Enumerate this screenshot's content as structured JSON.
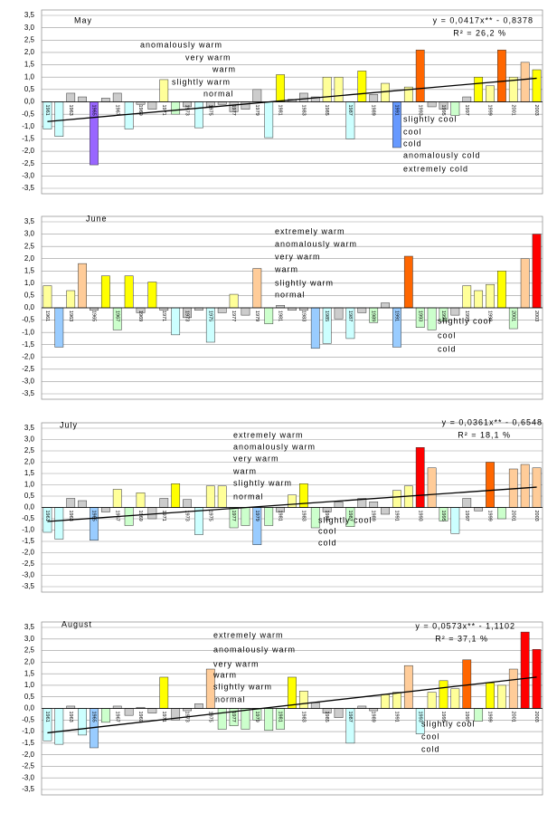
{
  "chart_data": [
    {
      "type": "bar",
      "title": "May",
      "categories": [
        "1961",
        null,
        "1963",
        null,
        "1965",
        null,
        "1967",
        null,
        "1969",
        null,
        "1971",
        null,
        "1973",
        null,
        "1975",
        null,
        "1977",
        null,
        "1979",
        null,
        "1981",
        null,
        "1983",
        null,
        "1985",
        null,
        "1987",
        null,
        "1989",
        null,
        "1991",
        null,
        "1993",
        null,
        "1995",
        null,
        "1997",
        null,
        "1999",
        null,
        "2001",
        null,
        "2003"
      ],
      "values": [
        -1.1,
        -1.4,
        0.35,
        0.2,
        -2.55,
        0.15,
        0.35,
        -1.1,
        -0.1,
        -0.3,
        0.9,
        -0.5,
        -0.2,
        -1.05,
        -0.2,
        -0.1,
        -0.4,
        -0.3,
        0.5,
        -1.45,
        1.1,
        0.1,
        0.35,
        0.2,
        1.0,
        1.0,
        -1.5,
        1.25,
        0.3,
        0.75,
        -1.85,
        0.6,
        2.1,
        -0.2,
        -0.3,
        -0.55,
        0.2,
        1.0,
        0.65,
        2.1,
        1.0,
        1.6,
        1.3
      ],
      "colors": [
        "#cff",
        "#cff",
        "#ccc",
        "#ccc",
        "#96f",
        "#ccc",
        "#ccc",
        "#cff",
        "#ccc",
        "#ccc",
        "#ff9",
        "#cfc",
        "#ccc",
        "#cff",
        "#ccc",
        "#ccc",
        "#ccc",
        "#ccc",
        "#ccc",
        "#cff",
        "#ff0",
        "#ccc",
        "#ccc",
        "#ccc",
        "#ff9",
        "#ff9",
        "#cff",
        "#ff0",
        "#ccc",
        "#ff9",
        "#69f",
        "#ff9",
        "#f60",
        "#ccc",
        "#ccc",
        "#cfc",
        "#ccc",
        "#ff0",
        "#ff9",
        "#f60",
        "#ff9",
        "#fc9",
        "#ff0"
      ],
      "class_labels": [
        "anomalously warm",
        "very warm",
        "warm",
        "slightly warm",
        "normal",
        "slightly cool",
        "cool",
        "cold",
        "anomalously cold",
        "extremely cold"
      ],
      "trend": {
        "slope": 0.0417,
        "intercept": -0.8378,
        "equation": "y = 0,0417x** - 0,8378",
        "r_squared": "R² = 26,2 %"
      },
      "ylim": [
        -3.5,
        3.5
      ],
      "yticks": [
        {
          "value": 3.5,
          "label": "3,5"
        },
        {
          "value": 3.0,
          "label": "3,0"
        },
        {
          "value": 2.5,
          "label": "2,5"
        },
        {
          "value": 2.0,
          "label": "2,0"
        },
        {
          "value": 1.5,
          "label": "1,5"
        },
        {
          "value": 1.0,
          "label": "1,0"
        },
        {
          "value": 0.5,
          "label": "0,5"
        },
        {
          "value": 0,
          "label": "0,0"
        },
        {
          "value": -0.5,
          "label": "-0,5"
        },
        {
          "value": -1.0,
          "label": "-1,0"
        },
        {
          "value": -1.5,
          "label": "-1,5"
        },
        {
          "value": -2.0,
          "label": "-2,0"
        },
        {
          "value": -2.5,
          "label": "-2,5"
        },
        {
          "value": -3.0,
          "label": "-3,0"
        },
        {
          "value": -3.5,
          "label": "-3,5"
        }
      ],
      "grid": true
    },
    {
      "type": "bar",
      "title": "June",
      "categories": [
        "1961",
        null,
        "1963",
        null,
        "1965",
        null,
        "1967",
        null,
        "1969",
        null,
        "1971",
        null,
        "1973",
        null,
        "1975",
        null,
        "1977",
        null,
        "1979",
        null,
        "1981",
        null,
        "1983",
        null,
        "1985",
        null,
        "1987",
        null,
        "1989",
        null,
        "1991",
        null,
        "1993",
        null,
        "1995",
        null,
        "1997",
        null,
        "1999",
        null,
        "2001",
        null,
        "2003"
      ],
      "values": [
        0.9,
        -1.6,
        0.7,
        1.8,
        -0.1,
        1.3,
        -0.9,
        1.3,
        -0.2,
        1.05,
        -0.1,
        -1.1,
        -0.4,
        -0.1,
        -1.4,
        -0.2,
        0.55,
        -0.3,
        1.6,
        -0.65,
        0.1,
        -0.1,
        -0.1,
        -1.65,
        -1.45,
        -0.45,
        -1.25,
        -0.2,
        -0.6,
        0.2,
        -1.6,
        2.1,
        -0.8,
        -0.9,
        -0.55,
        -0.3,
        0.9,
        0.7,
        0.95,
        1.5,
        -0.85,
        2.0,
        3.0
      ],
      "colors": [
        "#ff9",
        "#9cf",
        "#ff9",
        "#fc9",
        "#ccc",
        "#ff0",
        "#cfc",
        "#ff0",
        "#ccc",
        "#ff0",
        "#ccc",
        "#cff",
        "#ccc",
        "#ccc",
        "#cff",
        "#ccc",
        "#ff9",
        "#ccc",
        "#fc9",
        "#cfc",
        "#ccc",
        "#ccc",
        "#ccc",
        "#9cf",
        "#cff",
        "#ccc",
        "#cff",
        "#ccc",
        "#cfc",
        "#ccc",
        "#9cf",
        "#f60",
        "#cfc",
        "#cfc",
        "#cfc",
        "#ccc",
        "#ff9",
        "#ff9",
        "#ff9",
        "#ff0",
        "#cfc",
        "#fc9",
        "#f00"
      ],
      "class_labels": [
        "extremely warm",
        "anomalously warm",
        "very warm",
        "warm",
        "slightly warm",
        "normal",
        "slightly cool",
        "cool",
        "cold"
      ],
      "ylim": [
        -3.5,
        3.5
      ],
      "yticks": [
        {
          "value": 3.5,
          "label": "3,5"
        },
        {
          "value": 3.0,
          "label": "3,0"
        },
        {
          "value": 2.5,
          "label": "2,5"
        },
        {
          "value": 2.0,
          "label": "2,0"
        },
        {
          "value": 1.5,
          "label": "1,5"
        },
        {
          "value": 1.0,
          "label": "1,0"
        },
        {
          "value": 0.5,
          "label": "0,5"
        },
        {
          "value": 0,
          "label": "0,0"
        },
        {
          "value": -0.5,
          "label": "-0,5"
        },
        {
          "value": -1.0,
          "label": "-1,0"
        },
        {
          "value": -1.5,
          "label": "-1,5"
        },
        {
          "value": -2.0,
          "label": "-2,0"
        },
        {
          "value": -2.5,
          "label": "-2,5"
        },
        {
          "value": -3.0,
          "label": "-3,0"
        },
        {
          "value": -3.5,
          "label": "-3,5"
        }
      ],
      "grid": true
    },
    {
      "type": "bar",
      "title": "July",
      "categories": [
        "1961",
        null,
        "1963",
        null,
        "1965",
        null,
        "1967",
        null,
        "1969",
        null,
        "1971",
        null,
        "1973",
        null,
        "1975",
        null,
        "1977",
        null,
        "1979",
        null,
        "1981",
        null,
        "1983",
        null,
        "1985",
        null,
        "1987",
        null,
        "1989",
        null,
        "1991",
        null,
        "1993",
        null,
        "1995",
        null,
        "1997",
        null,
        "1999",
        null,
        "2001",
        null,
        "2003"
      ],
      "values": [
        -1.1,
        -1.4,
        0.4,
        0.3,
        -1.45,
        -0.2,
        0.8,
        -0.8,
        0.65,
        -0.5,
        0.4,
        1.05,
        0.35,
        -1.2,
        0.95,
        0.95,
        -0.9,
        -0.8,
        -1.65,
        -0.8,
        -0.2,
        0.55,
        1.05,
        -0.9,
        -0.2,
        0.25,
        -0.85,
        0.4,
        0.25,
        -0.3,
        0.75,
        0.95,
        2.65,
        1.75,
        -0.6,
        -1.15,
        0.4,
        -0.15,
        2.0,
        -0.5,
        1.7,
        1.9,
        1.75
      ],
      "colors": [
        "#cff",
        "#cff",
        "#ccc",
        "#ccc",
        "#9cf",
        "#ccc",
        "#ff9",
        "#cfc",
        "#ff9",
        "#ccc",
        "#ccc",
        "#ff0",
        "#ccc",
        "#cff",
        "#ff9",
        "#ff9",
        "#cfc",
        "#cfc",
        "#9cf",
        "#cfc",
        "#ccc",
        "#ff9",
        "#ff0",
        "#cfc",
        "#ccc",
        "#ccc",
        "#cfc",
        "#ccc",
        "#ccc",
        "#ccc",
        "#ff9",
        "#ff9",
        "#f00",
        "#fc9",
        "#cfc",
        "#cff",
        "#ccc",
        "#ccc",
        "#f60",
        "#cfc",
        "#fc9",
        "#fc9",
        "#fc9"
      ],
      "class_labels": [
        "extremely warm",
        "anomalously warm",
        "very warm",
        "warm",
        "slightly warm",
        "normal",
        "slightly cool",
        "cool",
        "cold"
      ],
      "trend": {
        "slope": 0.0361,
        "intercept": -0.6548,
        "equation": "y = 0,0361x** - 0,6548",
        "r_squared": "R² = 18,1 %"
      },
      "ylim": [
        -3.5,
        3.5
      ],
      "yticks": [
        {
          "value": 3.5,
          "label": "3,5"
        },
        {
          "value": 3.0,
          "label": "3,0"
        },
        {
          "value": 2.5,
          "label": "2,5"
        },
        {
          "value": 2.0,
          "label": "2,0"
        },
        {
          "value": 1.5,
          "label": "1,5"
        },
        {
          "value": 1.0,
          "label": "1,0"
        },
        {
          "value": 0.5,
          "label": "0,5"
        },
        {
          "value": 0,
          "label": "0,0"
        },
        {
          "value": -0.5,
          "label": "-0,5"
        },
        {
          "value": -1.0,
          "label": "-1,0"
        },
        {
          "value": -1.5,
          "label": "-1,5"
        },
        {
          "value": -2.0,
          "label": "-2,0"
        },
        {
          "value": -2.5,
          "label": "-2,5"
        },
        {
          "value": -3.0,
          "label": "-3,0"
        },
        {
          "value": -3.5,
          "label": "-3,5"
        }
      ],
      "grid": true
    },
    {
      "type": "bar",
      "title": "August",
      "categories": [
        "1961",
        null,
        "1963",
        null,
        "1965",
        null,
        "1967",
        null,
        "1969",
        null,
        "1971",
        null,
        "1973",
        null,
        "1975",
        null,
        "1977",
        null,
        "1979",
        null,
        "1981",
        null,
        "1983",
        null,
        "1985",
        null,
        "1987",
        null,
        "1989",
        null,
        "1991",
        null,
        "1993",
        null,
        "1995",
        null,
        "1997",
        null,
        "1999",
        null,
        "2001",
        null,
        "2003"
      ],
      "values": [
        -1.4,
        -1.55,
        0.1,
        -1.15,
        -1.7,
        -0.6,
        0.1,
        -0.3,
        0.05,
        -0.2,
        1.35,
        -0.5,
        -0.1,
        0.2,
        1.7,
        -0.9,
        -0.75,
        -0.9,
        -0.5,
        -0.95,
        -0.9,
        1.35,
        0.75,
        0.25,
        -0.2,
        -0.4,
        -1.5,
        0.1,
        -0.1,
        0.6,
        0.7,
        1.85,
        -1.1,
        0.7,
        1.2,
        0.85,
        2.1,
        -0.55,
        1.1,
        1.0,
        1.7,
        3.3,
        2.55
      ],
      "colors": [
        "#cff",
        "#cff",
        "#ccc",
        "#cff",
        "#9cf",
        "#cfc",
        "#ccc",
        "#ccc",
        "#ccc",
        "#ccc",
        "#ff0",
        "#ccc",
        "#ccc",
        "#ccc",
        "#fc9",
        "#cfc",
        "#cfc",
        "#cfc",
        "#cfc",
        "#cfc",
        "#cfc",
        "#ff0",
        "#ff9",
        "#ccc",
        "#ccc",
        "#ccc",
        "#cff",
        "#ccc",
        "#ccc",
        "#ff9",
        "#ff9",
        "#fc9",
        "#cff",
        "#ff9",
        "#ff0",
        "#ff9",
        "#f60",
        "#cfc",
        "#ff0",
        "#ff9",
        "#fc9",
        "#f00",
        "#f00"
      ],
      "class_labels": [
        "extremely warm",
        "anomalously warm",
        "very warm",
        "warm",
        "slightly warm",
        "normal",
        "slightly cool",
        "cool",
        "cold"
      ],
      "trend": {
        "slope": 0.0573,
        "intercept": -1.1102,
        "equation": "y = 0,0573x** - 1,1102",
        "r_squared": "R² = 37,1 %"
      },
      "ylim": [
        -3.5,
        3.5
      ],
      "yticks": [
        {
          "value": 3.5,
          "label": "3,5"
        },
        {
          "value": 3.0,
          "label": "3,0"
        },
        {
          "value": 2.5,
          "label": "2,5"
        },
        {
          "value": 2.0,
          "label": "2,0"
        },
        {
          "value": 1.5,
          "label": "1,5"
        },
        {
          "value": 1.0,
          "label": "1,0"
        },
        {
          "value": 0.5,
          "label": "0,5"
        },
        {
          "value": 0,
          "label": "0,0"
        },
        {
          "value": -0.5,
          "label": "-0,5"
        },
        {
          "value": -1.0,
          "label": "-1,0"
        },
        {
          "value": -1.5,
          "label": "-1,5"
        },
        {
          "value": -2.0,
          "label": "-2,0"
        },
        {
          "value": -2.5,
          "label": "-2,5"
        },
        {
          "value": -3.0,
          "label": "-3,0"
        },
        {
          "value": -3.5,
          "label": "-3,5"
        }
      ],
      "grid": true
    }
  ]
}
